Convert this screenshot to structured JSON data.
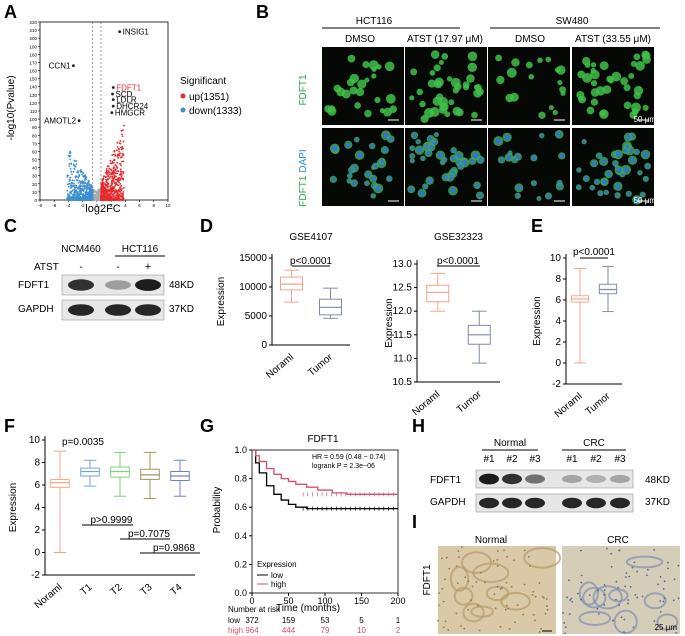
{
  "panels": {
    "A": {
      "letter": "A"
    },
    "B": {
      "letter": "B"
    },
    "C": {
      "letter": "C"
    },
    "D": {
      "letter": "D"
    },
    "E": {
      "letter": "E"
    },
    "F": {
      "letter": "F"
    },
    "G": {
      "letter": "G"
    },
    "H": {
      "letter": "H"
    },
    "I": {
      "letter": "I"
    }
  },
  "chart_data": [
    {
      "id": "A",
      "type": "scatter",
      "xlabel": "log2FC",
      "ylabel": "-log10(Pvalue)",
      "xlim": [
        -8,
        10
      ],
      "ylim": [
        0,
        220
      ],
      "x_ticks": [
        "-8",
        "-6",
        "-4",
        "-2",
        "0",
        "2",
        "4",
        "6",
        "8",
        "10"
      ],
      "y_ticks": [
        "0",
        "10",
        "20",
        "30",
        "40",
        "50",
        "60",
        "70",
        "80",
        "90",
        "100",
        "110",
        "120",
        "130",
        "140",
        "150",
        "160",
        "170",
        "180",
        "190",
        "200",
        "210",
        "220"
      ],
      "legend_title": "Significant",
      "series": [
        {
          "name": "up(1351)",
          "color": "#e8292d"
        },
        {
          "name": "down(1333)",
          "color": "#3f8fd2"
        }
      ],
      "labeled_points": [
        {
          "label": "INSIG1",
          "x": 3.2,
          "y": 208
        },
        {
          "label": "CCN1",
          "x": -3.3,
          "y": 166
        },
        {
          "label": "FDFT1",
          "x": 2.3,
          "y": 139,
          "color": "#e8292d"
        },
        {
          "label": "SCD",
          "x": 2.2,
          "y": 131
        },
        {
          "label": "LDLR",
          "x": 2.3,
          "y": 124
        },
        {
          "label": "DHCR24",
          "x": 2.3,
          "y": 116
        },
        {
          "label": "HMGCR",
          "x": 2.1,
          "y": 108
        },
        {
          "label": "AMOTL2",
          "x": -2.5,
          "y": 98
        }
      ]
    },
    {
      "id": "D1",
      "type": "box",
      "title": "GSE4107",
      "ylabel": "Expression",
      "categories": [
        "Noraml",
        "Tumor"
      ],
      "y_ticks": [
        "0",
        "5000",
        "10000",
        "15000"
      ],
      "ylim": [
        0,
        15000
      ],
      "pvalue": "p<0.0001",
      "boxes": [
        {
          "min": 7400,
          "q1": 9500,
          "median": 10500,
          "q3": 11700,
          "max": 12900
        },
        {
          "min": 4600,
          "q1": 5200,
          "median": 6500,
          "q3": 7900,
          "max": 9800
        }
      ]
    },
    {
      "id": "D2",
      "type": "box",
      "title": "GSE32323",
      "ylabel": "Expression",
      "categories": [
        "Noraml",
        "Tumor"
      ],
      "y_ticks": [
        "10.5",
        "11.0",
        "11.5",
        "12.0",
        "12.5",
        "13.0"
      ],
      "ylim": [
        10.5,
        13.0
      ],
      "pvalue": "p<0.0001",
      "boxes": [
        {
          "min": 12.0,
          "q1": 12.2,
          "median": 12.4,
          "q3": 12.55,
          "max": 12.8
        },
        {
          "min": 10.9,
          "q1": 11.3,
          "median": 11.5,
          "q3": 11.7,
          "max": 12.0
        }
      ]
    },
    {
      "id": "E",
      "type": "box",
      "ylabel": "Expression",
      "categories": [
        "Noraml",
        "Tumor"
      ],
      "y_ticks": [
        "-2",
        "0",
        "2",
        "4",
        "6",
        "8",
        "10"
      ],
      "ylim": [
        -2,
        10
      ],
      "pvalue": "p<0.0001",
      "boxes": [
        {
          "min": 0.0,
          "q1": 5.8,
          "median": 6.1,
          "q3": 6.4,
          "max": 9.0
        },
        {
          "min": 4.9,
          "q1": 6.6,
          "median": 7.0,
          "q3": 7.5,
          "max": 9.2
        }
      ]
    },
    {
      "id": "F",
      "type": "box",
      "ylabel": "Expression",
      "categories": [
        "Noraml",
        "T1",
        "T2",
        "T3",
        "T4"
      ],
      "y_ticks": [
        "-2",
        "0",
        "2",
        "4",
        "6",
        "8",
        "10"
      ],
      "ylim": [
        -2,
        10
      ],
      "pvalues": [
        "p=0.0035",
        "p>0.9999",
        "p=0.7075",
        "p=0.9868"
      ],
      "boxes": [
        {
          "min": 0.0,
          "q1": 5.8,
          "median": 6.2,
          "q3": 6.5,
          "max": 9.0
        },
        {
          "min": 5.9,
          "q1": 6.8,
          "median": 7.2,
          "q3": 7.5,
          "max": 8.2
        },
        {
          "min": 5.0,
          "q1": 6.7,
          "median": 7.2,
          "q3": 7.6,
          "max": 8.9
        },
        {
          "min": 4.8,
          "q1": 6.5,
          "median": 6.9,
          "q3": 7.4,
          "max": 8.9
        },
        {
          "min": 5.0,
          "q1": 6.4,
          "median": 6.8,
          "q3": 7.2,
          "max": 8.2
        }
      ]
    },
    {
      "id": "G",
      "type": "line",
      "title": "FDFT1",
      "xlabel": "Time (months)",
      "ylabel": "Probability",
      "xlim": [
        0,
        200
      ],
      "ylim": [
        0,
        1.0
      ],
      "x_ticks": [
        "0",
        "50",
        "100",
        "150",
        "200"
      ],
      "y_ticks": [
        "0.0",
        "0.2",
        "0.4",
        "0.6",
        "0.8",
        "1.0"
      ],
      "annotation1": "HR = 0.59 (0.48 − 0.74)",
      "annotation2": "logrank P = 2.3e−06",
      "legend_title": "Expression",
      "series": [
        {
          "name": "low",
          "color": "#000000",
          "x": [
            0,
            5,
            10,
            20,
            30,
            40,
            50,
            60,
            75,
            90,
            100,
            200
          ],
          "y": [
            1.0,
            0.91,
            0.84,
            0.75,
            0.69,
            0.65,
            0.62,
            0.6,
            0.59,
            0.59,
            0.59,
            0.59
          ]
        },
        {
          "name": "high",
          "color": "#d6506c",
          "x": [
            0,
            5,
            10,
            20,
            30,
            40,
            50,
            60,
            75,
            90,
            110,
            130,
            200
          ],
          "y": [
            1.0,
            0.96,
            0.92,
            0.87,
            0.83,
            0.8,
            0.78,
            0.76,
            0.74,
            0.72,
            0.7,
            0.69,
            0.69
          ]
        }
      ],
      "risk_table": {
        "title": "Number at risk",
        "rows": [
          {
            "name": "low",
            "values": [
              "372",
              "159",
              "53",
              "5",
              "1"
            ]
          },
          {
            "name": "high",
            "values": [
              "964",
              "444",
              "79",
              "10",
              "2"
            ]
          }
        ]
      }
    }
  ],
  "B": {
    "groups": [
      "HCT116",
      "SW480"
    ],
    "conditions": [
      "DMSO",
      "ATST (17.97 μM)",
      "DMSO",
      "ATST (33.55 μM)"
    ],
    "row1_label": "FDFT1",
    "row2_label_a": "FDFT1",
    "row2_label_b": "DAPI",
    "scale": "50 μm"
  },
  "C": {
    "cell_lines": [
      "NCM460",
      "HCT116"
    ],
    "atst_label": "ATST",
    "atst_marks": [
      "-",
      "-",
      "+"
    ],
    "proteins": [
      "FDFT1",
      "GAPDH"
    ],
    "sizes": [
      "48KD",
      "37KD"
    ]
  },
  "H": {
    "groups": [
      "Normal",
      "CRC"
    ],
    "lanes": [
      "#1",
      "#2",
      "#3",
      "#1",
      "#2",
      "#3"
    ],
    "proteins": [
      "FDFT1",
      "GAPDH"
    ],
    "sizes": [
      "48KD",
      "37KD"
    ]
  },
  "I": {
    "ylabel": "FDFT1",
    "titles": [
      "Normal",
      "CRC"
    ],
    "scale": "25 μm"
  }
}
